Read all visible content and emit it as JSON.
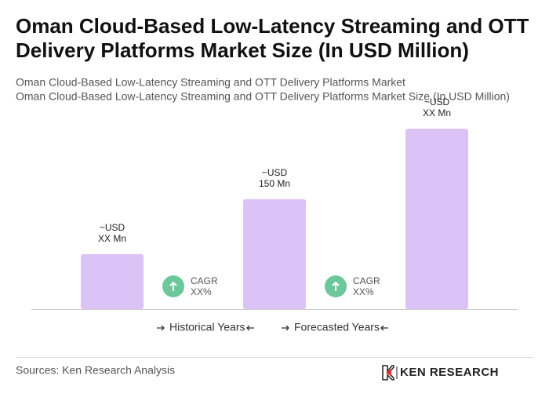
{
  "chart_data": {
    "type": "bar",
    "title": "Oman Cloud-Based Low-Latency Streaming and OTT Delivery Platforms Market Size (In USD Million)",
    "subtitle": [
      "Oman Cloud-Based Low-Latency Streaming and OTT Delivery Platforms Market",
      "Oman Cloud-Based Low-Latency Streaming and OTT Delivery Platforms Market Size (In USD Million)"
    ],
    "categories": [
      null,
      null,
      null
    ],
    "values": [
      75,
      150,
      246
    ],
    "value_labels": [
      [
        "~USD",
        "XX Mn"
      ],
      [
        "~USD",
        "150 Mn"
      ],
      [
        "~USD",
        "XX Mn"
      ]
    ],
    "color": "#dcc3f7",
    "annotations": [
      {
        "label": "CAGR",
        "value": "XX%"
      },
      {
        "label": "CAGR",
        "value": "XX%"
      }
    ],
    "periods": [
      "Historical Years",
      "Forecasted Years"
    ],
    "source": "Sources: Ken Research Analysis",
    "brand": "KEN RESEARCH"
  }
}
